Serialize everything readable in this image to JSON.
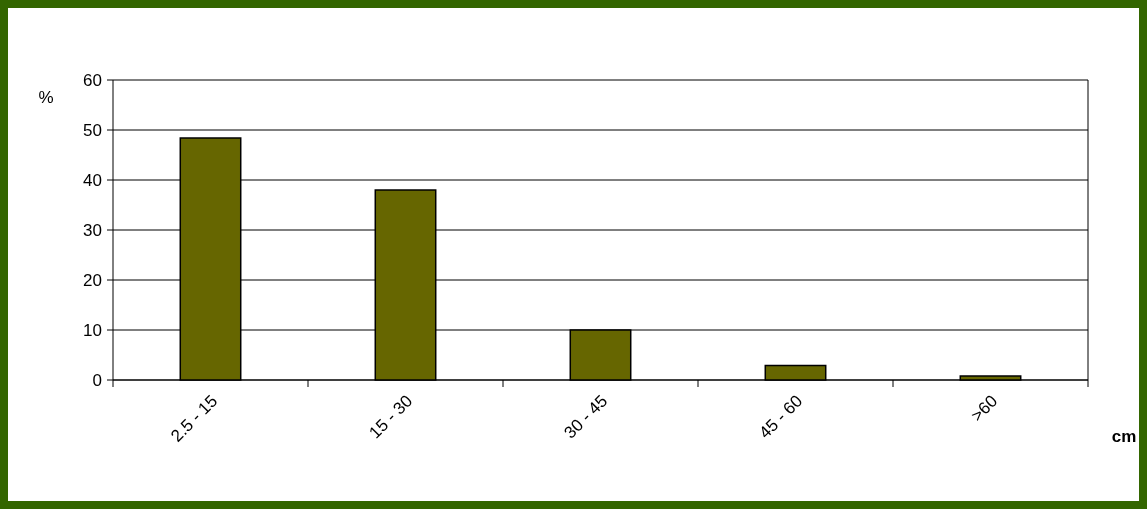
{
  "chart_data": {
    "type": "bar",
    "xlabel": "cm",
    "ylabel": "%",
    "categories": [
      "2.5 - 15",
      "15 - 30",
      "30 - 45",
      "45 - 60",
      ">60"
    ],
    "values": [
      48.4,
      38,
      10,
      2.9,
      0.8
    ],
    "color": "#666600",
    "ylim": [
      0,
      60
    ],
    "yticks": [
      0,
      10,
      20,
      30,
      40,
      50,
      60
    ],
    "grid": "y"
  }
}
